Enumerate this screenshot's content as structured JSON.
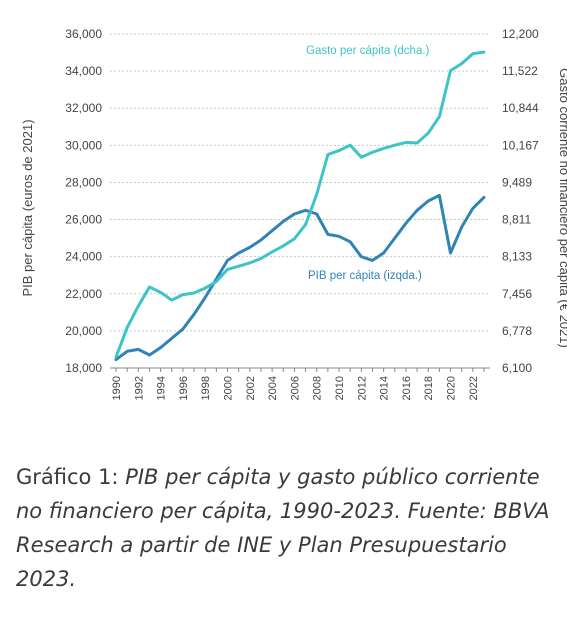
{
  "chart_data": {
    "type": "line",
    "ylabel": "PIB per cápita (euros de 2021)",
    "y2label": "Gasto corriente no financiero per cápita (€ 2021)",
    "ylim": [
      18000,
      36000
    ],
    "y2lim": [
      6100,
      12200
    ],
    "yticks": [
      "18,000",
      "20,000",
      "22,000",
      "24,000",
      "26,000",
      "28,000",
      "30,000",
      "32,000",
      "34,000",
      "36,000"
    ],
    "y2ticks": [
      "6,100",
      "6,778",
      "7,456",
      "8,133",
      "8,811",
      "9,489",
      "10,167",
      "10,844",
      "11,522",
      "12,200"
    ],
    "xticks": [
      "1990",
      "1992",
      "1994",
      "1996",
      "1998",
      "2000",
      "2002",
      "2004",
      "2006",
      "2008",
      "2010",
      "2012",
      "2014",
      "2016",
      "2018",
      "2020",
      "2022"
    ],
    "grid": true,
    "x": [
      1990,
      1991,
      1992,
      1993,
      1994,
      1995,
      1996,
      1997,
      1998,
      1999,
      2000,
      2001,
      2002,
      2003,
      2004,
      2005,
      2006,
      2007,
      2008,
      2009,
      2010,
      2011,
      2012,
      2013,
      2014,
      2015,
      2016,
      2017,
      2018,
      2019,
      2020,
      2021,
      2022,
      2023
    ],
    "series": [
      {
        "name": "PIB per cápita (izqda.)",
        "axis": "left",
        "color": "#2f84b5",
        "values": [
          18450,
          18900,
          19000,
          18700,
          19100,
          19600,
          20100,
          20900,
          21800,
          22800,
          23800,
          24200,
          24500,
          24900,
          25400,
          25900,
          26300,
          26500,
          26300,
          25200,
          25100,
          24800,
          24000,
          23800,
          24200,
          25000,
          25800,
          26500,
          27000,
          27300,
          24200,
          25600,
          26600,
          27200
        ]
      },
      {
        "name": "Gasto per cápita (dcha.)",
        "axis": "right",
        "color": "#3cc4c6",
        "values": [
          6300,
          6840,
          7230,
          7580,
          7480,
          7340,
          7440,
          7470,
          7560,
          7680,
          7900,
          7960,
          8020,
          8100,
          8220,
          8330,
          8460,
          8720,
          9270,
          10000,
          10070,
          10170,
          9950,
          10040,
          10110,
          10170,
          10220,
          10210,
          10390,
          10690,
          11530,
          11660,
          11840,
          11870
        ]
      }
    ]
  },
  "caption": {
    "lead": "Gráfico 1: ",
    "body": "PIB per cápita y gasto público corriente no financiero per cápita, 1990-2023. Fuente: BBVA Research a partir de INE y Plan Presupuestario 2023."
  }
}
